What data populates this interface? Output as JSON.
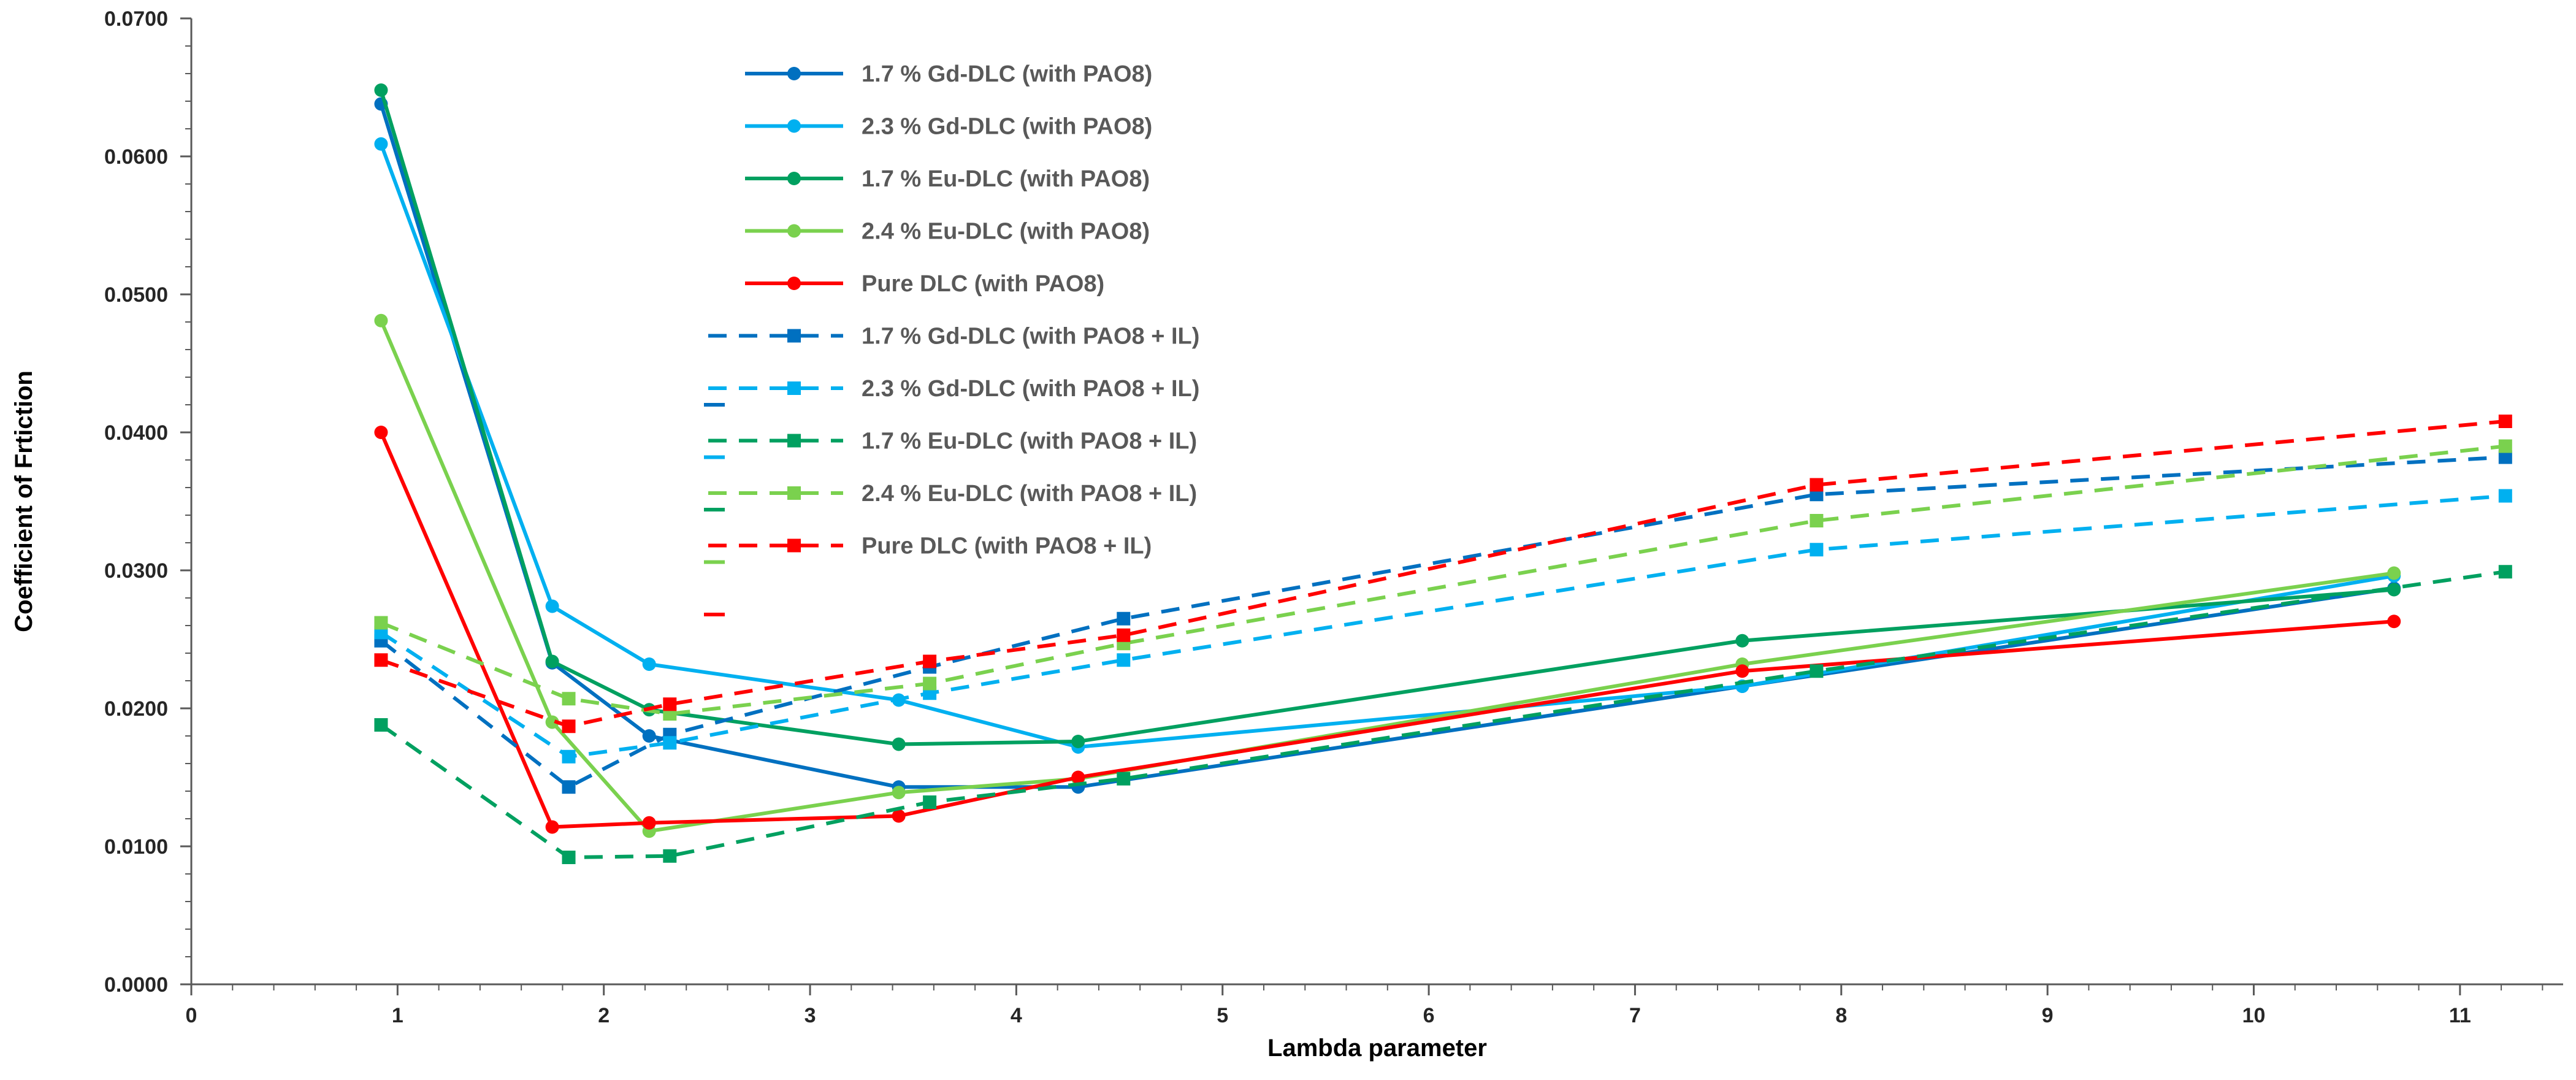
{
  "chart_data": {
    "type": "line",
    "title": "",
    "xlabel": "Lambda parameter",
    "ylabel": "Coefficient of Frtiction",
    "xlim": [
      0,
      11.5
    ],
    "ylim": [
      0,
      0.07
    ],
    "x_ticks": [
      "0",
      "1",
      "2",
      "3",
      "4",
      "5",
      "6",
      "7",
      "8",
      "9",
      "10",
      "11"
    ],
    "y_ticks": [
      "0.0000",
      "0.0100",
      "0.0200",
      "0.0300",
      "0.0400",
      "0.0500",
      "0.0600",
      "0.0700"
    ],
    "grid": false,
    "legend_position": "top-center",
    "series": [
      {
        "name": "1.7 % Gd-DLC (with PAO8)",
        "color": "#0070C0",
        "dash": "solid",
        "marker": "circle",
        "x": [
          0.92,
          1.75,
          2.22,
          3.43,
          4.3,
          7.52,
          10.68
        ],
        "y": [
          0.0638,
          0.0233,
          0.018,
          0.0143,
          0.0143,
          0.0216,
          0.0287
        ]
      },
      {
        "name": "2.3 % Gd-DLC (with PAO8)",
        "color": "#00B0F0",
        "dash": "solid",
        "marker": "circle",
        "x": [
          0.92,
          1.75,
          2.22,
          3.43,
          4.3,
          7.52,
          10.68
        ],
        "y": [
          0.0609,
          0.0274,
          0.0232,
          0.0206,
          0.0172,
          0.0216,
          0.0296
        ]
      },
      {
        "name": "1.7 % Eu-DLC (with PAO8)",
        "color": "#00A060",
        "dash": "solid",
        "marker": "circle",
        "x": [
          0.92,
          1.75,
          2.22,
          3.43,
          4.3,
          7.52,
          10.68
        ],
        "y": [
          0.0648,
          0.0234,
          0.0199,
          0.0174,
          0.0176,
          0.0249,
          0.0286
        ]
      },
      {
        "name": "2.4 % Eu-DLC (with PAO8)",
        "color": "#7AD14E",
        "dash": "solid",
        "marker": "circle",
        "x": [
          0.92,
          1.75,
          2.22,
          3.43,
          4.3,
          7.52,
          10.68
        ],
        "y": [
          0.0481,
          0.019,
          0.0111,
          0.0139,
          0.0149,
          0.0232,
          0.0298
        ]
      },
      {
        "name": "Pure DLC (with PAO8)",
        "color": "#FF0000",
        "dash": "solid",
        "marker": "circle",
        "x": [
          0.92,
          1.75,
          2.22,
          3.43,
          4.3,
          7.52,
          10.68
        ],
        "y": [
          0.04,
          0.0114,
          0.0117,
          0.0122,
          0.015,
          0.0227,
          0.0263
        ]
      },
      {
        "name": "1.7 % Gd-DLC (with PAO8 + IL)",
        "color": "#0070C0",
        "dash": "dashed",
        "marker": "square",
        "x": [
          0.92,
          1.83,
          2.32,
          3.58,
          4.52,
          7.88,
          11.22
        ],
        "y": [
          0.0249,
          0.0143,
          0.0181,
          0.023,
          0.0265,
          0.0355,
          0.0382
        ]
      },
      {
        "name": "2.3 % Gd-DLC (with PAO8 + IL)",
        "color": "#00B0F0",
        "dash": "dashed",
        "marker": "square",
        "x": [
          0.92,
          1.83,
          2.32,
          3.58,
          4.52,
          7.88,
          11.22
        ],
        "y": [
          0.0255,
          0.0165,
          0.0175,
          0.0211,
          0.0235,
          0.0315,
          0.0354
        ]
      },
      {
        "name": "1.7 % Eu-DLC (with PAO8 + IL)",
        "color": "#00A060",
        "dash": "dashed",
        "marker": "square",
        "x": [
          0.92,
          1.83,
          2.32,
          3.58,
          4.52,
          7.88,
          11.22
        ],
        "y": [
          0.0188,
          0.0092,
          0.0093,
          0.0132,
          0.0149,
          0.0227,
          0.0299
        ]
      },
      {
        "name": "2.4 % Eu-DLC (with PAO8 + IL)",
        "color": "#7AD14E",
        "dash": "dashed",
        "marker": "square",
        "x": [
          0.92,
          1.83,
          2.32,
          3.58,
          4.52,
          7.88,
          11.22
        ],
        "y": [
          0.0262,
          0.0207,
          0.0196,
          0.0218,
          0.0247,
          0.0336,
          0.039
        ]
      },
      {
        "name": "Pure DLC (with PAO8 + IL)",
        "color": "#FF0000",
        "dash": "dashed",
        "marker": "square",
        "x": [
          0.92,
          1.83,
          2.32,
          3.58,
          4.52,
          7.88,
          11.22
        ],
        "y": [
          0.0235,
          0.0187,
          0.0203,
          0.0234,
          0.0253,
          0.0362,
          0.0408
        ]
      }
    ]
  }
}
